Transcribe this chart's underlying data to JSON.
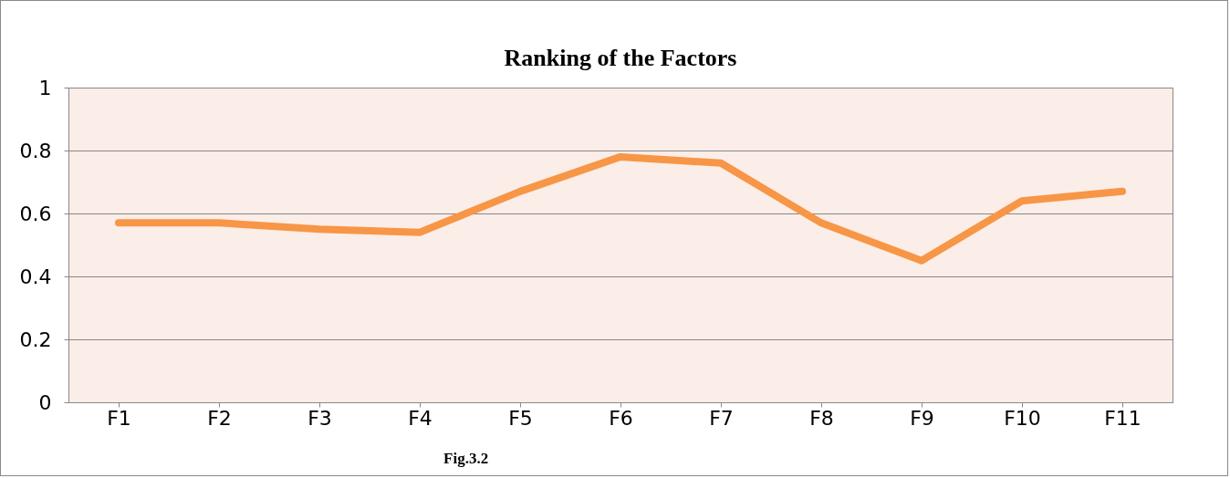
{
  "chart_data": {
    "type": "line",
    "title": "Ranking of the Factors",
    "annotations": [
      "Fig.3.2"
    ],
    "categories": [
      "F1",
      "F2",
      "F3",
      "F4",
      "F5",
      "F6",
      "F7",
      "F8",
      "F9",
      "F10",
      "F11"
    ],
    "series": [
      {
        "color": "#f79646",
        "values": [
          0.57,
          0.57,
          0.55,
          0.54,
          0.67,
          0.78,
          0.76,
          0.57,
          0.45,
          0.64,
          0.67
        ]
      }
    ],
    "ylim": [
      0,
      1
    ],
    "yticks": [
      0,
      0.2,
      0.4,
      0.6,
      0.8,
      1
    ],
    "grid": "y"
  }
}
